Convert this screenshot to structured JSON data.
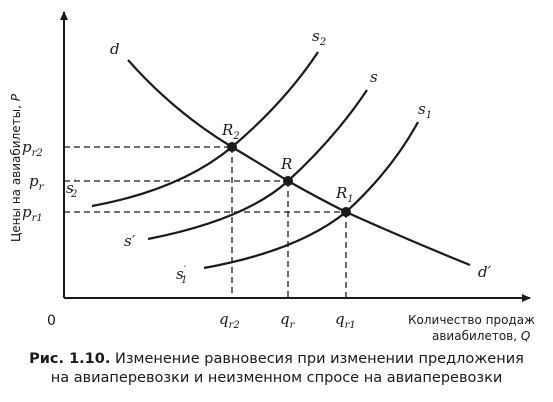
{
  "axes": {
    "y_title": "Цены на авиабилеты,",
    "y_var": "P",
    "x_title_line1": "Количество продаж",
    "x_title_line2": "авиабилетов,",
    "x_var": "Q",
    "origin": "0"
  },
  "price_ticks": [
    {
      "base": "p",
      "sub": "r2"
    },
    {
      "base": "p",
      "sub": "r"
    },
    {
      "base": "p",
      "sub": "r1"
    }
  ],
  "quantity_ticks": [
    {
      "base": "q",
      "sub": "r2"
    },
    {
      "base": "q",
      "sub": "r"
    },
    {
      "base": "q",
      "sub": "r1"
    }
  ],
  "curves": {
    "demand": {
      "start": "d",
      "end": "d′"
    },
    "supply_initial": {
      "start": "s′",
      "end": "s"
    },
    "supply_decreased": {
      "start_base": "s",
      "start_sub": "2",
      "start_prime": "′",
      "end_base": "s",
      "end_sub": "2"
    },
    "supply_increased": {
      "start_base": "s",
      "start_sub": "1",
      "start_prime": "′",
      "end_base": "s",
      "end_sub": "1"
    }
  },
  "equilibria": [
    {
      "base": "R",
      "sub": "2"
    },
    {
      "base": "R",
      "sub": ""
    },
    {
      "base": "R",
      "sub": "1"
    }
  ],
  "caption": {
    "label": "Рис. 1.10.",
    "line1": "Изменение равновесия при изменении предложения",
    "line2": "на авиаперевозки и неизменном спросе на авиаперевозки"
  }
}
